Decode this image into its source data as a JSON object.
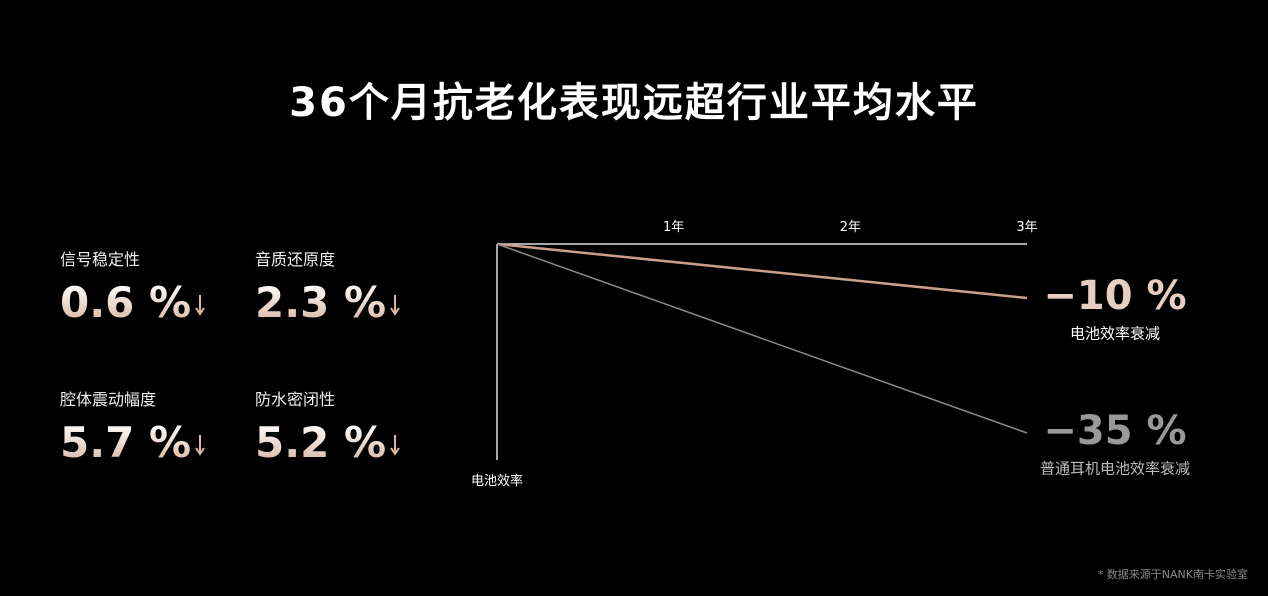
{
  "title": "36个月抗老化表现远超行业平均水平",
  "stats": [
    {
      "label": "信号稳定性",
      "value": "0.6 %"
    },
    {
      "label": "音质还原度",
      "value": "2.3 %"
    },
    {
      "label": "腔体震动幅度",
      "value": "5.7 %"
    },
    {
      "label": "防水密闭性",
      "value": "5.2 %"
    }
  ],
  "chart_data": {
    "type": "line",
    "x": [
      0,
      3
    ],
    "xlim": [
      0,
      3
    ],
    "xticks": [
      {
        "value": 1,
        "label": "1年"
      },
      {
        "value": 2,
        "label": "2年"
      },
      {
        "value": 3,
        "label": "3年"
      }
    ],
    "ylim": [
      -40,
      0
    ],
    "y_label": "电池效率",
    "series": [
      {
        "name": "电池效率衰减",
        "color": "#c9a08a",
        "values": [
          0,
          -10
        ],
        "value_labels": [
          null,
          "−10 %"
        ]
      },
      {
        "name": "普通耳机电池效率衰减",
        "color": "#8a8a8a",
        "values": [
          0,
          -35
        ],
        "value_labels": [
          null,
          "−35 %"
        ]
      }
    ]
  },
  "footnote": "* 数据来源于NANK南卡实验室"
}
